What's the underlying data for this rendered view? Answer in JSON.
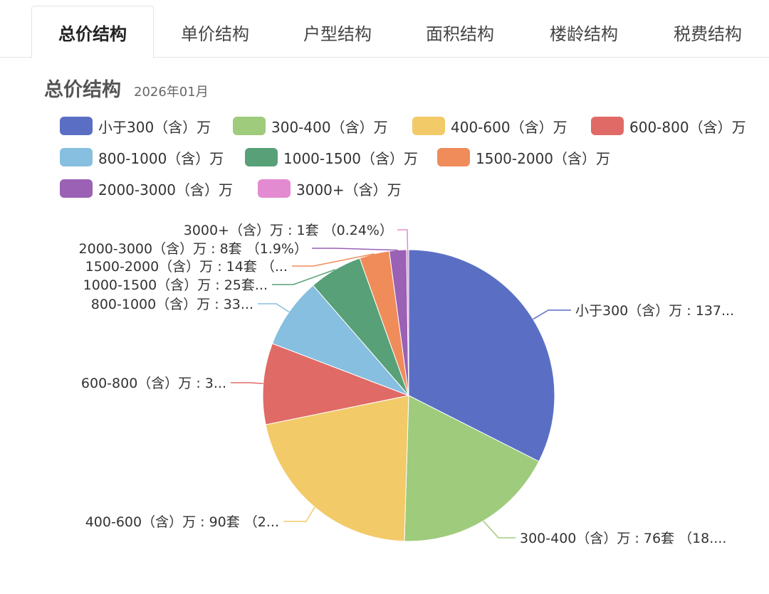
{
  "tabs": [
    {
      "label": "总价结构",
      "active": true
    },
    {
      "label": "单价结构",
      "active": false
    },
    {
      "label": "户型结构",
      "active": false
    },
    {
      "label": "面积结构",
      "active": false
    },
    {
      "label": "楼龄结构",
      "active": false
    },
    {
      "label": "税费结构",
      "active": false
    }
  ],
  "header": {
    "title": "总价结构",
    "date": "2026年01月"
  },
  "chart_data": {
    "type": "pie",
    "start": "top",
    "direction": "clockwise",
    "legend_position": "top-left",
    "slices": [
      {
        "name": "小于300（含）万",
        "value": 137,
        "color": "#5a6fc4",
        "label": "小于300（含）万 : 137..."
      },
      {
        "name": "300-400（含）万",
        "value": 76,
        "color": "#9fcb7c",
        "label": "300-400（含）万 : 76套 （18...."
      },
      {
        "name": "400-600（含）万",
        "value": 90,
        "color": "#f2ca68",
        "label": "400-600（含）万 : 90套 （2..."
      },
      {
        "name": "600-800（含）万",
        "value": 38,
        "color": "#e06a66",
        "label": "600-800（含）万 : 3..."
      },
      {
        "name": "800-1000（含）万",
        "value": 33,
        "color": "#86bfdf",
        "label": "800-1000（含）万 : 33..."
      },
      {
        "name": "1000-1500（含）万",
        "value": 25,
        "color": "#58a077",
        "label": "1000-1500（含）万 : 25套..."
      },
      {
        "name": "1500-2000（含）万",
        "value": 14,
        "color": "#ef8c5a",
        "label": "1500-2000（含）万 : 14套 （..."
      },
      {
        "name": "2000-3000（含）万",
        "value": 8,
        "color": "#9a61b4",
        "label": "2000-3000（含）万 : 8套 （1.9%）"
      },
      {
        "name": "3000+（含）万",
        "value": 1,
        "color": "#e38bd0",
        "label": "3000+（含）万 : 1套 （0.24%）"
      }
    ]
  }
}
